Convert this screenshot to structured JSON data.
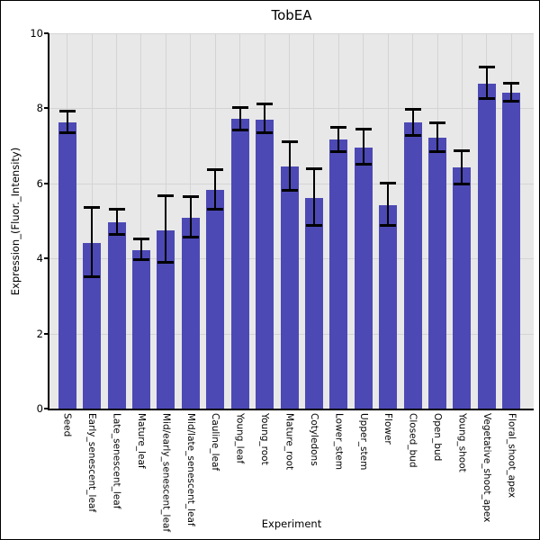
{
  "chart_data": {
    "type": "bar",
    "title": "TobEA",
    "xlabel": "Experiment",
    "ylabel": "Expression_(Fluor._Intensity)",
    "ylim": [
      0,
      10
    ],
    "yticks": [
      0,
      2,
      4,
      6,
      8,
      10
    ],
    "grid": true,
    "legend": "none",
    "categories": [
      "Seed",
      "Early_senescent_leaf",
      "Late_senescent_leaf",
      "Mature_leaf",
      "Mid/early_senescent_leaf",
      "Mid/late_senescent_leaf",
      "Cauline_leaf",
      "Young_leaf",
      "Young_root",
      "Mature_root",
      "Cotyledons",
      "Lower_stem",
      "Upper_stem",
      "Flower",
      "Closed_bud",
      "Open_bud",
      "Young_shoot",
      "Vegetative_shoot_apex",
      "Floral_shoot_apex"
    ],
    "values": [
      7.62,
      4.41,
      4.97,
      4.22,
      4.75,
      5.09,
      5.82,
      7.72,
      7.7,
      6.44,
      5.61,
      7.17,
      6.96,
      5.42,
      7.62,
      7.22,
      6.42,
      8.65,
      8.41
    ],
    "error_low": [
      7.34,
      3.51,
      4.63,
      3.98,
      3.89,
      4.57,
      5.3,
      7.42,
      7.36,
      5.82,
      4.87,
      6.84,
      6.52,
      4.89,
      7.29,
      6.85,
      5.98,
      8.26,
      8.2
    ],
    "error_high": [
      7.92,
      5.37,
      5.32,
      4.52,
      5.66,
      5.64,
      6.36,
      8.01,
      8.12,
      7.1,
      6.38,
      7.5,
      7.44,
      6.0,
      7.98,
      7.61,
      6.88,
      9.1,
      8.68
    ],
    "colors": {
      "bar": "#4c49b5",
      "error": "#000000",
      "plot_background": "#e8e8e8",
      "grid": "#d4d4d4",
      "axis": "#000000",
      "text": "#000000",
      "frame_border": "#000000",
      "page_background": "#ffffff"
    }
  }
}
